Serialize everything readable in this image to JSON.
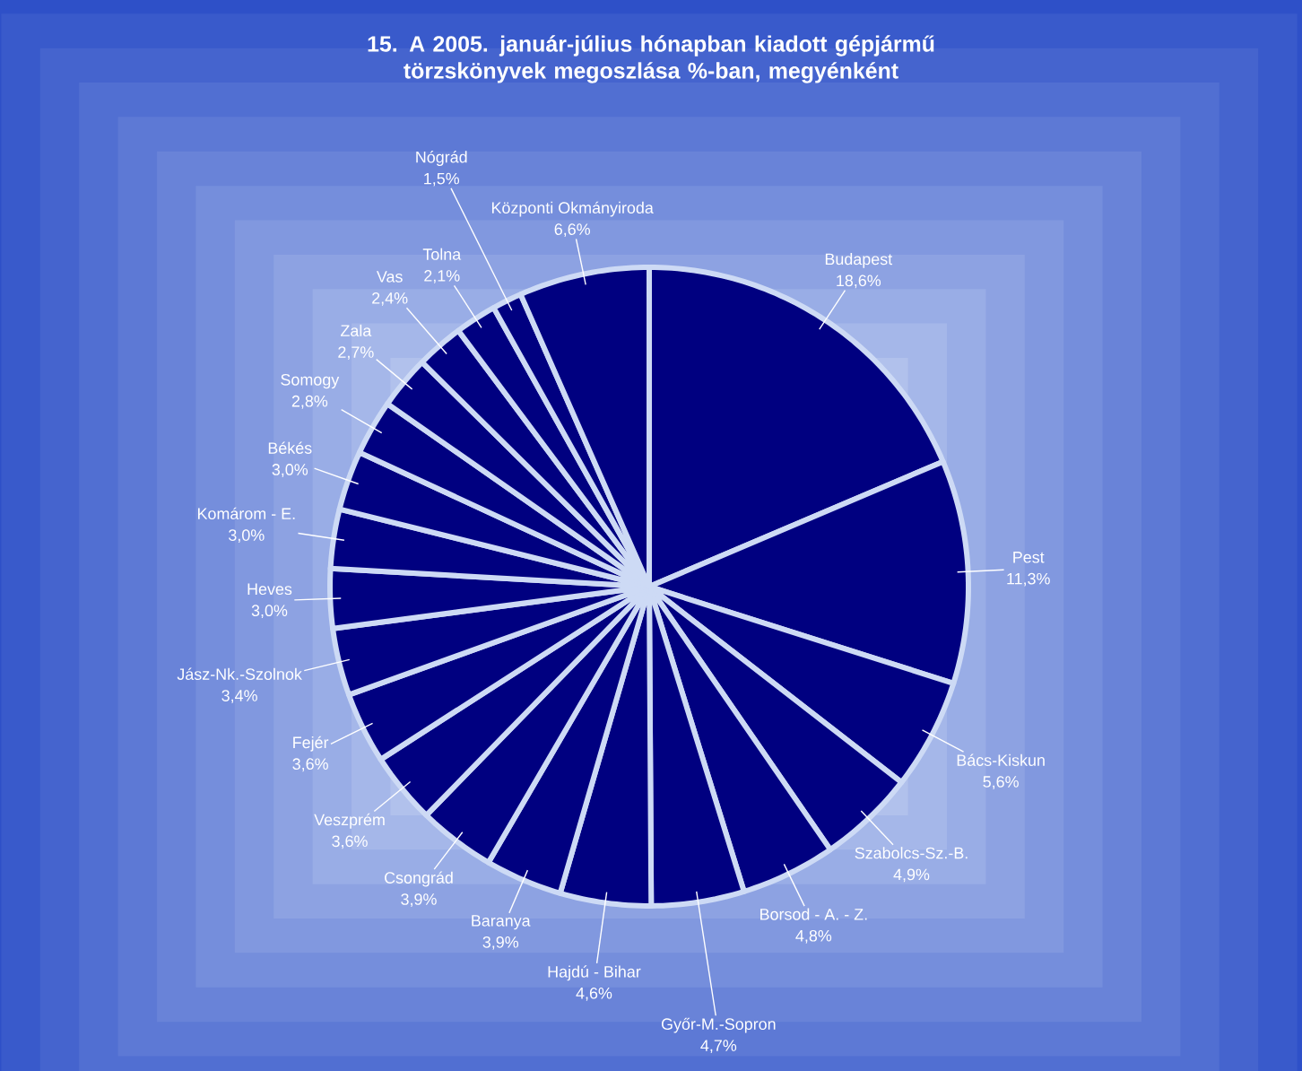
{
  "chart_data": {
    "type": "pie",
    "title": "15. A 2005. január-július hónapban kiadott gépjármű törzskönyvek megoszlása %-ban, megyénként",
    "categories": [
      "Budapest",
      "Pest",
      "Bács-Kiskun",
      "Szabolcs-Sz.-B.",
      "Borsod - A. - Z.",
      "Győr-M.-Sopron",
      "Hajdú - Bihar",
      "Baranya",
      "Csongrád",
      "Veszprém",
      "Fejér",
      "Jász-Nk.-Szolnok",
      "Heves",
      "Komárom - E.",
      "Békés",
      "Somogy",
      "Zala",
      "Vas",
      "Tolna",
      "Nógrád",
      "Központi Okmányiroda"
    ],
    "values": [
      18.6,
      11.3,
      5.6,
      4.9,
      4.8,
      4.7,
      4.6,
      3.9,
      3.9,
      3.6,
      3.6,
      3.4,
      3.0,
      3.0,
      3.0,
      2.8,
      2.7,
      2.4,
      2.1,
      1.5,
      6.6
    ],
    "value_labels": [
      "18,6%",
      "11,3%",
      "5,6%",
      "4,9%",
      "4,8%",
      "4,7%",
      "4,6%",
      "3,9%",
      "3,9%",
      "3,6%",
      "3,6%",
      "3,4%",
      "3,0%",
      "3,0%",
      "3,0%",
      "2,8%",
      "2,7%",
      "2,4%",
      "2,1%",
      "1,5%",
      "6,6%"
    ],
    "colors": [
      "#000080",
      "#000080",
      "#000080",
      "#000080",
      "#000080",
      "#000080",
      "#000080",
      "#000080",
      "#000080",
      "#000080",
      "#000080",
      "#000080",
      "#000080",
      "#000080",
      "#000080",
      "#000080",
      "#000080",
      "#000080",
      "#000080",
      "#000080",
      "#000080"
    ]
  }
}
